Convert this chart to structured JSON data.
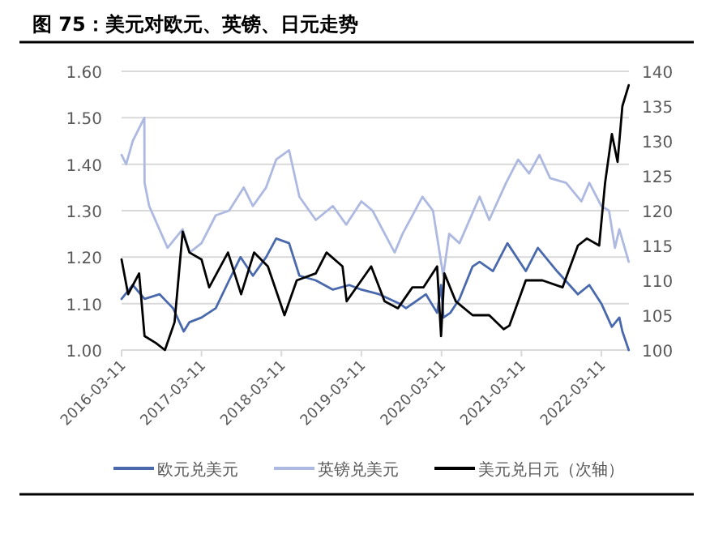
{
  "chart_data": {
    "type": "line",
    "title": "图 75：美元对欧元、英镑、日元走势",
    "xlim": [
      "2016-03-11",
      "2022-07-15"
    ],
    "xticks": [
      "2016-03-11",
      "2017-03-11",
      "2018-03-11",
      "2019-03-11",
      "2020-03-11",
      "2021-03-11",
      "2022-03-11"
    ],
    "ylim": [
      1.0,
      1.6
    ],
    "yticks": [
      {
        "value": 1.0,
        "label": "1.00"
      },
      {
        "value": 1.1,
        "label": "1.10"
      },
      {
        "value": 1.2,
        "label": "1.20"
      },
      {
        "value": 1.3,
        "label": "1.30"
      },
      {
        "value": 1.4,
        "label": "1.40"
      },
      {
        "value": 1.5,
        "label": "1.50"
      },
      {
        "value": 1.6,
        "label": "1.60"
      }
    ],
    "y2lim": [
      100,
      140
    ],
    "y2ticks": [
      100,
      105,
      110,
      115,
      120,
      125,
      130,
      135,
      140
    ],
    "grid": "y",
    "legend": "bottom",
    "line_style": "solid",
    "marker": "none",
    "series": [
      {
        "name": "欧元兑美元",
        "color": "#4a69ad",
        "x": [
          "2016-03-11",
          "2016-05-01",
          "2016-06-24",
          "2016-09-01",
          "2016-11-01",
          "2016-12-20",
          "2017-01-15",
          "2017-03-11",
          "2017-05-15",
          "2017-07-15",
          "2017-09-05",
          "2017-11-01",
          "2017-12-31",
          "2018-02-15",
          "2018-04-15",
          "2018-06-01",
          "2018-08-15",
          "2018-11-01",
          "2019-01-15",
          "2019-03-11",
          "2019-06-01",
          "2019-09-01",
          "2019-10-01",
          "2019-12-31",
          "2020-02-20",
          "2020-03-09",
          "2020-03-20",
          "2020-04-20",
          "2020-06-01",
          "2020-07-31",
          "2020-09-01",
          "2020-11-01",
          "2021-01-06",
          "2021-03-31",
          "2021-05-25",
          "2021-08-20",
          "2021-11-24",
          "2022-01-15",
          "2022-03-11",
          "2022-04-28",
          "2022-06-01",
          "2022-06-15",
          "2022-07-14"
        ],
        "values": [
          1.11,
          1.14,
          1.11,
          1.12,
          1.09,
          1.04,
          1.06,
          1.07,
          1.09,
          1.15,
          1.2,
          1.16,
          1.2,
          1.24,
          1.23,
          1.16,
          1.15,
          1.13,
          1.14,
          1.13,
          1.12,
          1.1,
          1.09,
          1.12,
          1.08,
          1.14,
          1.07,
          1.08,
          1.11,
          1.18,
          1.19,
          1.17,
          1.23,
          1.17,
          1.22,
          1.17,
          1.12,
          1.14,
          1.1,
          1.05,
          1.07,
          1.04,
          1.0
        ]
      },
      {
        "name": "英镑兑美元",
        "color": "#adb9e0",
        "x": [
          "2016-03-11",
          "2016-04-01",
          "2016-05-01",
          "2016-06-23",
          "2016-06-24",
          "2016-07-15",
          "2016-10-07",
          "2016-12-15",
          "2017-01-16",
          "2017-03-11",
          "2017-05-15",
          "2017-07-15",
          "2017-09-20",
          "2017-11-01",
          "2017-12-31",
          "2018-02-15",
          "2018-04-15",
          "2018-06-01",
          "2018-08-15",
          "2018-11-01",
          "2019-01-01",
          "2019-03-11",
          "2019-05-01",
          "2019-08-10",
          "2019-09-15",
          "2019-12-15",
          "2020-02-01",
          "2020-03-19",
          "2020-04-15",
          "2020-06-01",
          "2020-09-01",
          "2020-10-15",
          "2020-12-31",
          "2021-02-24",
          "2021-04-15",
          "2021-06-01",
          "2021-07-20",
          "2021-10-01",
          "2021-12-10",
          "2022-01-15",
          "2022-03-11",
          "2022-04-15",
          "2022-05-12",
          "2022-06-01",
          "2022-07-14"
        ],
        "values": [
          1.42,
          1.4,
          1.45,
          1.5,
          1.36,
          1.31,
          1.22,
          1.26,
          1.21,
          1.23,
          1.29,
          1.3,
          1.35,
          1.31,
          1.35,
          1.41,
          1.43,
          1.33,
          1.28,
          1.31,
          1.27,
          1.32,
          1.3,
          1.21,
          1.25,
          1.33,
          1.3,
          1.16,
          1.25,
          1.23,
          1.33,
          1.28,
          1.36,
          1.41,
          1.38,
          1.42,
          1.37,
          1.36,
          1.32,
          1.36,
          1.31,
          1.3,
          1.22,
          1.26,
          1.19
        ]
      },
      {
        "name": "美元兑日元（次轴）",
        "color": "#000000",
        "axis": "y2",
        "x": [
          "2016-03-11",
          "2016-04-10",
          "2016-05-30",
          "2016-06-24",
          "2016-08-15",
          "2016-09-25",
          "2016-11-08",
          "2016-12-15",
          "2017-01-15",
          "2017-03-11",
          "2017-04-15",
          "2017-07-10",
          "2017-09-08",
          "2017-11-06",
          "2018-01-08",
          "2018-03-25",
          "2018-05-20",
          "2018-08-15",
          "2018-10-03",
          "2018-12-15",
          "2019-01-03",
          "2019-04-25",
          "2019-06-25",
          "2019-08-25",
          "2019-10-30",
          "2019-12-20",
          "2020-02-20",
          "2020-03-09",
          "2020-03-24",
          "2020-05-15",
          "2020-07-31",
          "2020-10-15",
          "2020-12-20",
          "2021-01-15",
          "2021-03-31",
          "2021-06-15",
          "2021-09-15",
          "2021-11-24",
          "2022-01-04",
          "2022-03-01",
          "2022-03-28",
          "2022-04-28",
          "2022-05-24",
          "2022-06-15",
          "2022-07-14"
        ],
        "values": [
          113,
          108,
          111,
          102,
          101,
          100,
          104,
          117,
          114,
          113,
          109,
          114,
          108,
          114,
          112,
          105,
          110,
          111,
          114,
          112,
          107,
          112,
          107,
          106,
          109,
          109,
          112,
          102,
          111,
          107,
          105,
          105,
          103,
          103.5,
          110,
          110,
          109,
          115,
          116,
          115,
          124,
          131,
          127,
          135,
          138
        ]
      }
    ]
  }
}
